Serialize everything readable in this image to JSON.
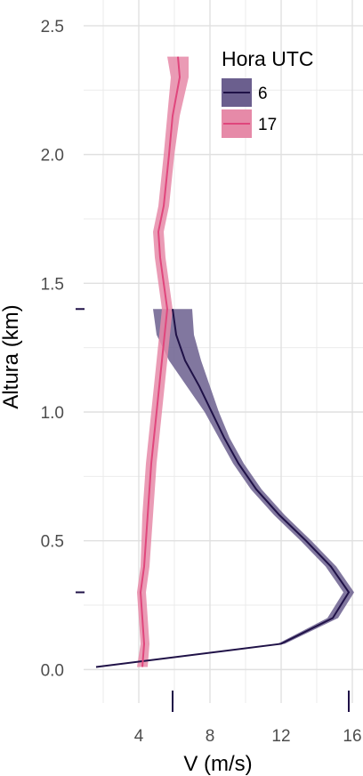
{
  "chart_data": {
    "type": "line",
    "xlabel": "V (m/s)",
    "ylabel": "Altura (km)",
    "xlim": [
      0.9,
      16.6
    ],
    "ylim": [
      -0.13,
      2.6
    ],
    "x_ticks": [
      "4",
      "8",
      "12",
      "16"
    ],
    "y_ticks": [
      "0.0",
      "0.5",
      "1.0",
      "1.5",
      "2.0",
      "2.5"
    ],
    "grid": true,
    "legend": {
      "title": "Hora UTC",
      "placement": "top-right",
      "entries": [
        "6",
        "17"
      ]
    },
    "rug": {
      "y_values": [
        0.3,
        1.4
      ],
      "x_values": [
        5.9,
        15.8
      ],
      "color": "#1f1147"
    },
    "series": [
      {
        "name": "6",
        "color": "#1f1147",
        "band_color": "#6b5f8e",
        "points": [
          {
            "x": 1.6,
            "y": 0.01,
            "lo": 1.6,
            "hi": 1.6
          },
          {
            "x": 12.0,
            "y": 0.1,
            "lo": 11.8,
            "hi": 12.2
          },
          {
            "x": 14.9,
            "y": 0.2,
            "lo": 14.6,
            "hi": 15.2
          },
          {
            "x": 15.8,
            "y": 0.3,
            "lo": 15.5,
            "hi": 16.1
          },
          {
            "x": 14.8,
            "y": 0.4,
            "lo": 14.5,
            "hi": 15.1
          },
          {
            "x": 13.4,
            "y": 0.5,
            "lo": 13.1,
            "hi": 13.7
          },
          {
            "x": 11.9,
            "y": 0.6,
            "lo": 11.6,
            "hi": 12.2
          },
          {
            "x": 10.6,
            "y": 0.7,
            "lo": 10.3,
            "hi": 10.9
          },
          {
            "x": 9.6,
            "y": 0.8,
            "lo": 9.3,
            "hi": 9.9
          },
          {
            "x": 8.8,
            "y": 0.9,
            "lo": 8.5,
            "hi": 9.1
          },
          {
            "x": 8.1,
            "y": 1.0,
            "lo": 7.7,
            "hi": 8.5
          },
          {
            "x": 7.4,
            "y": 1.1,
            "lo": 6.7,
            "hi": 8.0
          },
          {
            "x": 6.6,
            "y": 1.2,
            "lo": 5.7,
            "hi": 7.5
          },
          {
            "x": 6.1,
            "y": 1.3,
            "lo": 5.0,
            "hi": 7.1
          },
          {
            "x": 5.9,
            "y": 1.4,
            "lo": 4.8,
            "hi": 7.0
          }
        ]
      },
      {
        "name": "17",
        "color": "#e0467c",
        "band_color": "#e68aa8",
        "points": [
          {
            "x": 4.2,
            "y": 0.01,
            "lo": 3.9,
            "hi": 4.5
          },
          {
            "x": 4.3,
            "y": 0.1,
            "lo": 4.1,
            "hi": 4.6
          },
          {
            "x": 4.2,
            "y": 0.2,
            "lo": 4.0,
            "hi": 4.5
          },
          {
            "x": 4.1,
            "y": 0.3,
            "lo": 3.9,
            "hi": 4.4
          },
          {
            "x": 4.3,
            "y": 0.4,
            "lo": 4.1,
            "hi": 4.6
          },
          {
            "x": 4.5,
            "y": 0.6,
            "lo": 4.2,
            "hi": 4.8
          },
          {
            "x": 4.7,
            "y": 0.8,
            "lo": 4.4,
            "hi": 5.0
          },
          {
            "x": 5.0,
            "y": 1.0,
            "lo": 4.7,
            "hi": 5.3
          },
          {
            "x": 5.3,
            "y": 1.2,
            "lo": 5.0,
            "hi": 5.6
          },
          {
            "x": 5.6,
            "y": 1.4,
            "lo": 5.3,
            "hi": 5.9
          },
          {
            "x": 5.2,
            "y": 1.6,
            "lo": 4.9,
            "hi": 5.5
          },
          {
            "x": 5.1,
            "y": 1.7,
            "lo": 4.8,
            "hi": 5.4
          },
          {
            "x": 5.4,
            "y": 1.8,
            "lo": 5.1,
            "hi": 5.7
          },
          {
            "x": 5.7,
            "y": 2.0,
            "lo": 5.4,
            "hi": 6.0
          },
          {
            "x": 5.9,
            "y": 2.15,
            "lo": 5.6,
            "hi": 6.3
          },
          {
            "x": 6.3,
            "y": 2.3,
            "lo": 5.8,
            "hi": 6.8
          },
          {
            "x": 6.2,
            "y": 2.38,
            "lo": 5.6,
            "hi": 6.8
          }
        ]
      }
    ]
  }
}
